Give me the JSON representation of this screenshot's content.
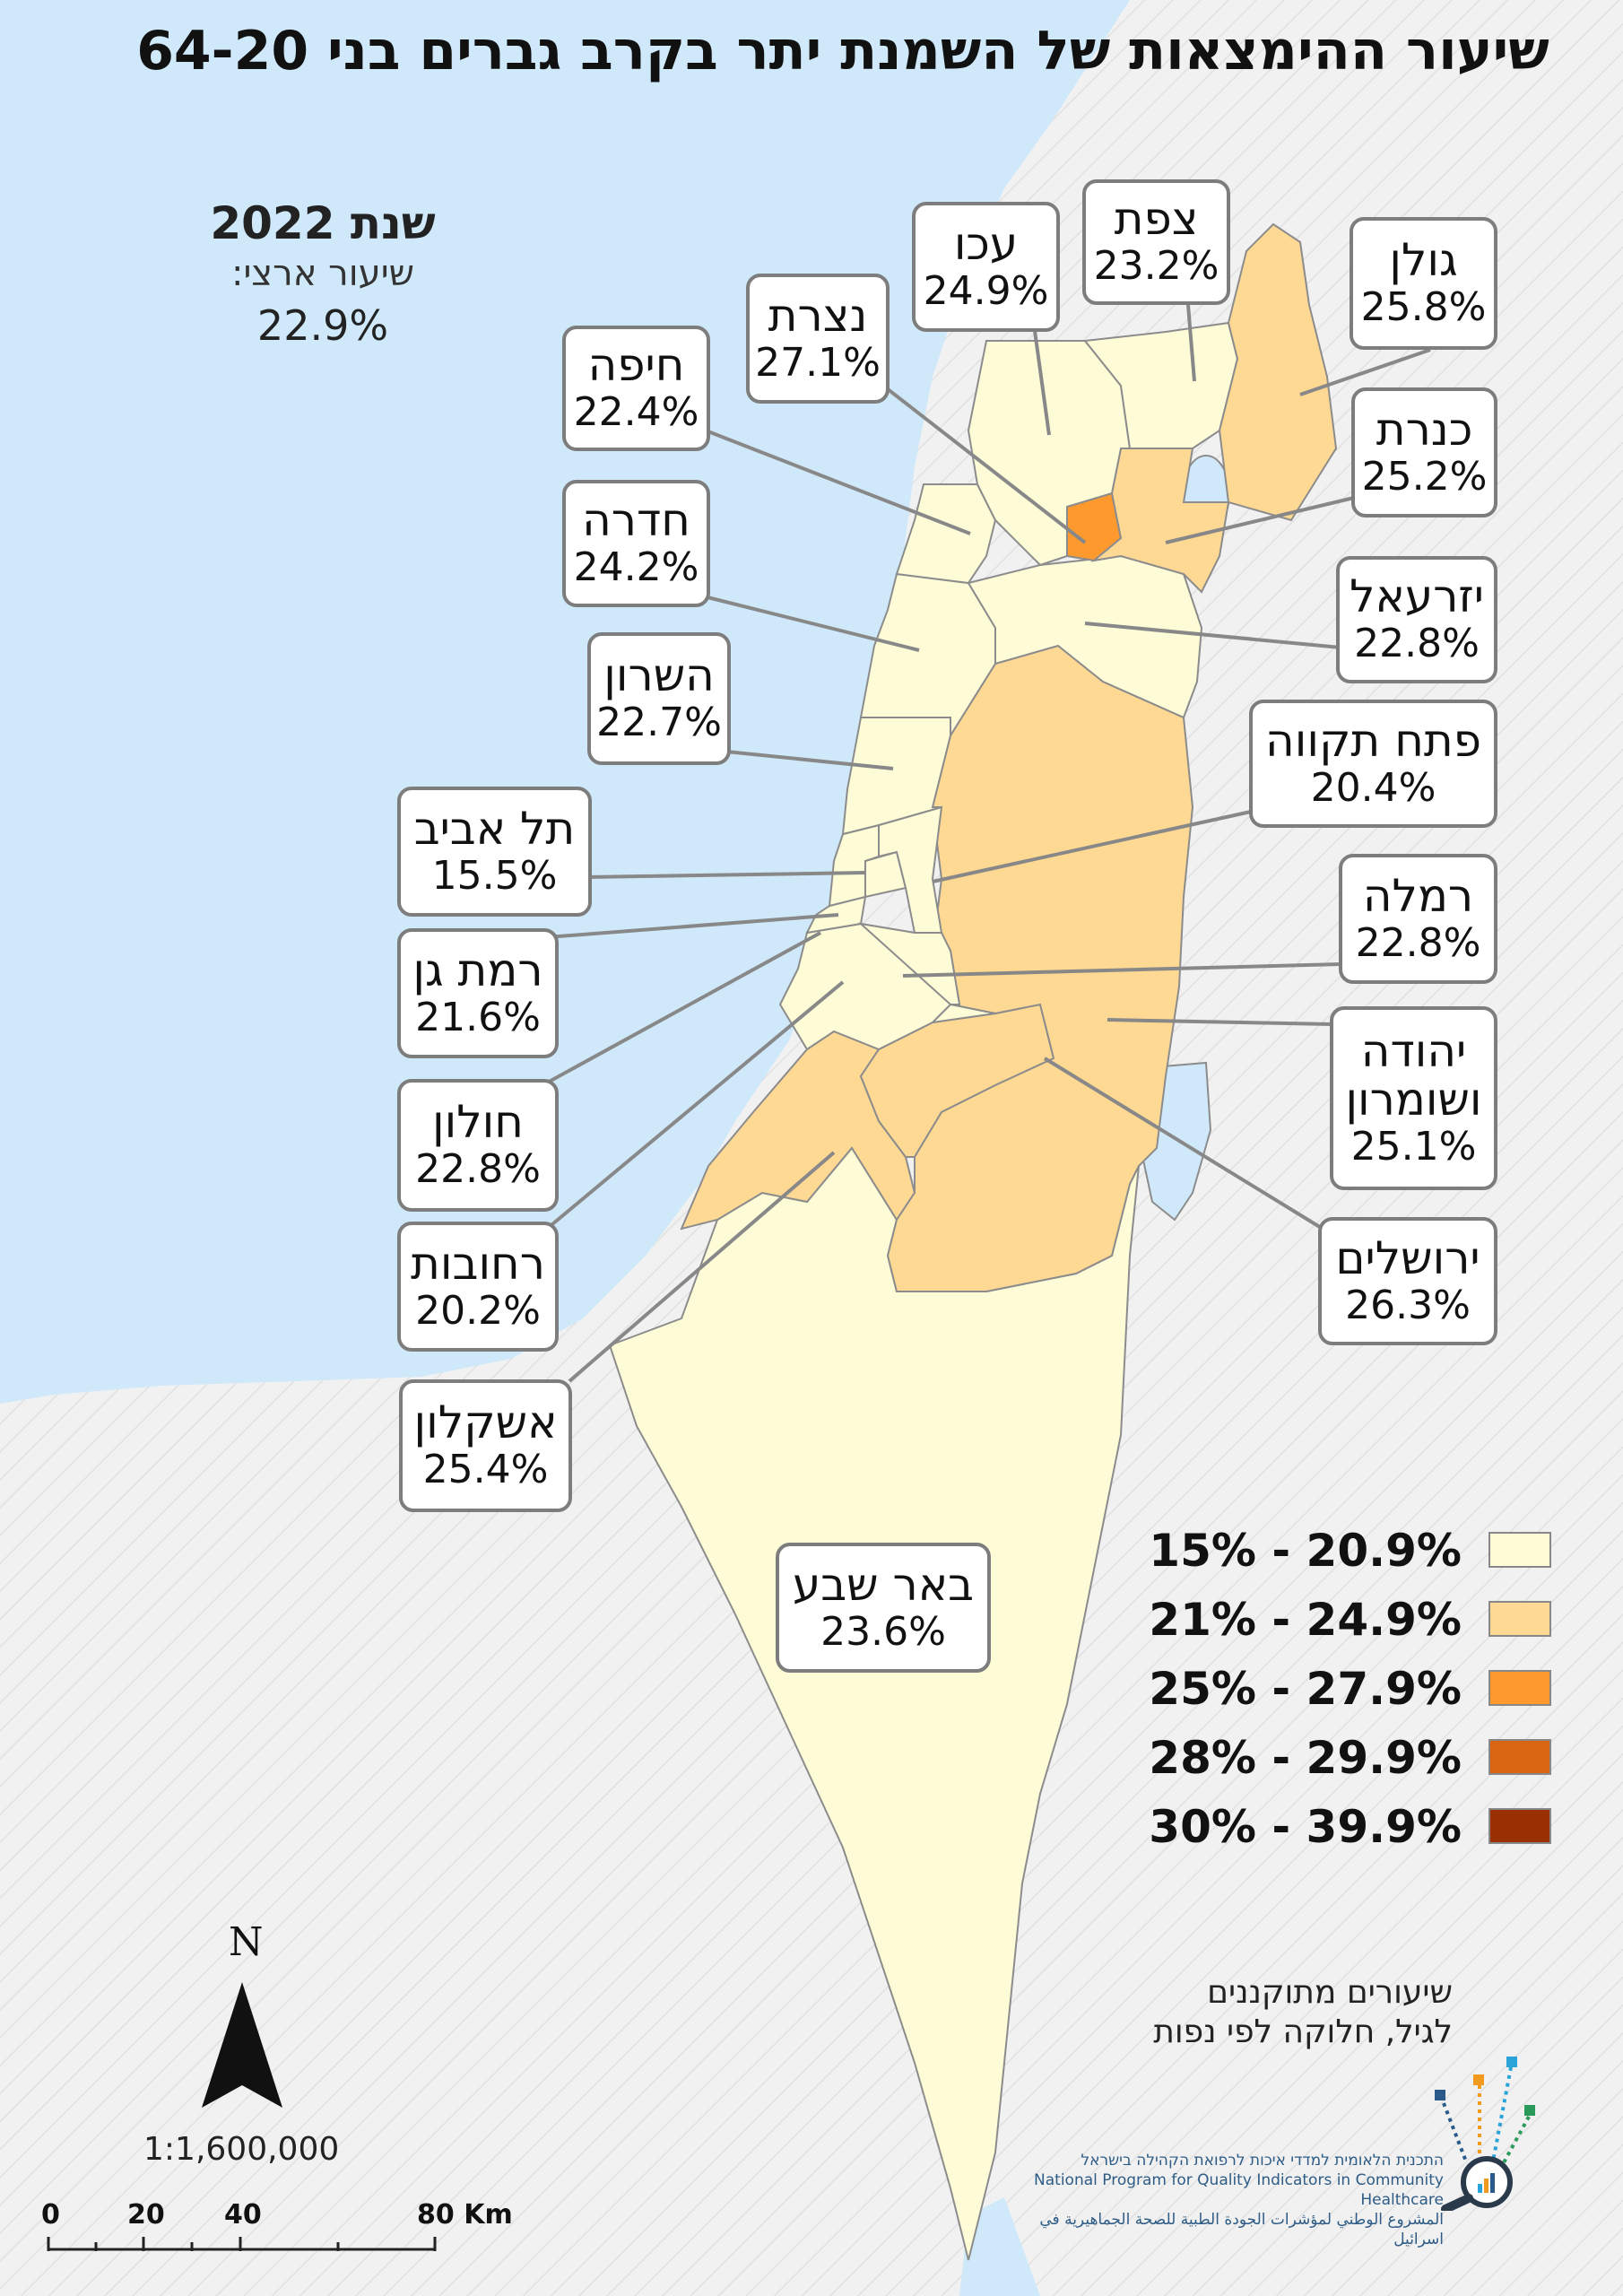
{
  "title": "שיעור ההימצאות של השמנת יתר בקרב גברים בני 64-20",
  "national": {
    "year": "שנת 2022",
    "label": "שיעור ארצי:",
    "value": "22.9%"
  },
  "regions": [
    {
      "name": "צפת",
      "value": "23.2%",
      "bucket": 1
    },
    {
      "name": "עכו",
      "value": "24.9%",
      "bucket": 1
    },
    {
      "name": "גולן",
      "value": "25.8%",
      "bucket": 1
    },
    {
      "name": "נצרת",
      "value": "27.1%",
      "bucket": 1
    },
    {
      "name": "חיפה",
      "value": "22.4%",
      "bucket": 1
    },
    {
      "name": "כנרת",
      "value": "25.2%",
      "bucket": 1
    },
    {
      "name": "חדרה",
      "value": "24.2%",
      "bucket": 0
    },
    {
      "name": "יזרעאל",
      "value": "22.8%",
      "bucket": 0
    },
    {
      "name": "השרון",
      "value": "22.7%",
      "bucket": 0
    },
    {
      "name": "פתח תקווה",
      "value": "20.4%",
      "bucket": 0
    },
    {
      "name": "תל אביב",
      "value": "15.5%",
      "bucket": 0
    },
    {
      "name": "רמלה",
      "value": "22.8%",
      "bucket": 0
    },
    {
      "name": "רמת גן",
      "value": "21.6%",
      "bucket": 0
    },
    {
      "name": "יהודה ושומרון",
      "value": "25.1%",
      "bucket": 1
    },
    {
      "name": "חולון",
      "value": "22.8%",
      "bucket": 0
    },
    {
      "name": "רחובות",
      "value": "20.2%",
      "bucket": 0
    },
    {
      "name": "ירושלים",
      "value": "26.3%",
      "bucket": 1
    },
    {
      "name": "אשקלון",
      "value": "25.4%",
      "bucket": 1
    },
    {
      "name": "באר שבע",
      "value": "23.6%",
      "bucket": 0
    }
  ],
  "legend": [
    {
      "label": "15% - 20.9%",
      "color": "#fefcd7"
    },
    {
      "label": "21% - 24.9%",
      "color": "#fed994"
    },
    {
      "label": "25% - 27.9%",
      "color": "#fe9a2d"
    },
    {
      "label": "28% - 29.9%",
      "color": "#d96513"
    },
    {
      "label": "30% - 39.9%",
      "color": "#9a3002"
    }
  ],
  "colors": {
    "sea": "#cfe9fb",
    "land_outside": "#f1f1f1",
    "border": "#8c8c8c",
    "callout_border": "#7d7d7d"
  },
  "note": {
    "line1": "שיעורים מתוקננים",
    "line2": "לגיל, חלוקה לפי נפות"
  },
  "north_label": "N",
  "scale": "1:1,600,000",
  "scale_bar": {
    "ticks": [
      "0",
      "20",
      "40",
      "80 Km"
    ]
  },
  "logo": {
    "line1": "התכנית הלאומית למדדי איכות לרפואת הקהילה בישראל",
    "line2": "National Program for Quality Indicators in Community Healthcare",
    "line3": "المشروع الوطني لمؤشرات الجودة الطبية للصحة الجماهيرية في اسرائيل"
  }
}
